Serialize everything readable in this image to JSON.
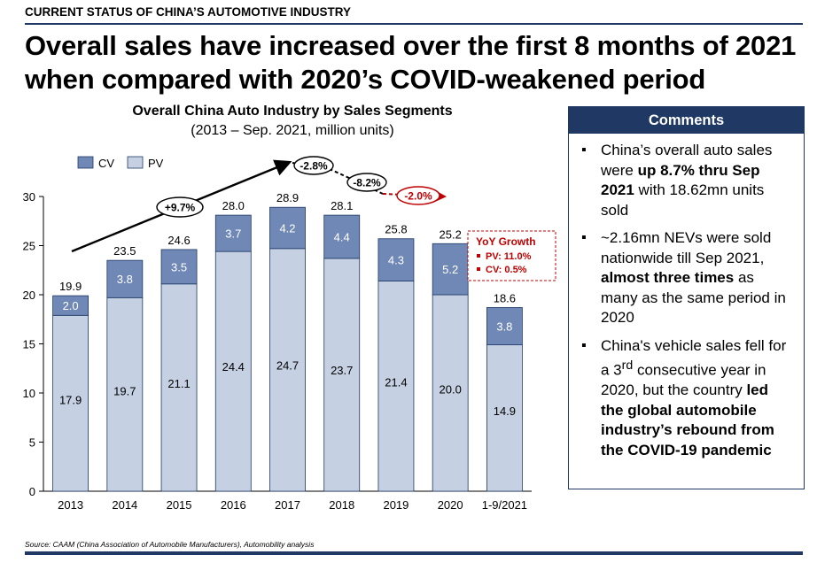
{
  "header": {
    "kicker": "CURRENT STATUS OF CHINA’S AUTOMOTIVE INDUSTRY",
    "headline_line1": "Overall sales have increased over the first 8 months of 2021",
    "headline_line2": "when compared with 2020’s COVID-weakened period"
  },
  "chart_data": {
    "type": "bar",
    "stacked": true,
    "title": "Overall China Auto Industry by Sales Segments",
    "subtitle": "(2013 – Sep. 2021, million units)",
    "categories": [
      "2013",
      "2014",
      "2015",
      "2016",
      "2017",
      "2018",
      "2019",
      "2020",
      "1-9/2021"
    ],
    "series": [
      {
        "name": "PV",
        "color": "#c5d1e3",
        "values": [
          17.9,
          19.7,
          21.1,
          24.4,
          24.7,
          23.7,
          21.4,
          20.0,
          14.9
        ]
      },
      {
        "name": "CV",
        "color": "#6f88b6",
        "values": [
          2.0,
          3.8,
          3.5,
          3.7,
          4.2,
          4.4,
          4.3,
          5.2,
          3.8
        ]
      }
    ],
    "totals": [
      19.9,
      23.5,
      24.6,
      28.0,
      28.9,
      28.1,
      25.8,
      25.2,
      18.6
    ],
    "pv_labels": [
      "17.9",
      "19.7",
      "21.1",
      "24.4",
      "24.7",
      "23.7",
      "21.4",
      "20.0",
      "14.9"
    ],
    "cv_labels": [
      "2.0",
      "3.8",
      "3.5",
      "3.7",
      "4.2",
      "4.4",
      "4.3",
      "5.2",
      "3.8"
    ],
    "total_labels": [
      "19.9",
      "23.5",
      "24.6",
      "28.0",
      "28.9",
      "28.1",
      "25.8",
      "25.2",
      "18.6"
    ],
    "ylim": [
      0,
      30
    ],
    "yticks": [
      0,
      5,
      10,
      15,
      20,
      25,
      30
    ],
    "legend": {
      "position": "top-left",
      "items": [
        "CV",
        "PV"
      ]
    },
    "annotations": {
      "growth_up": "+9.7%",
      "growth_2018": "-2.8%",
      "growth_2019": "-8.2%",
      "growth_2020": "-2.0%",
      "yoy_title": "YoY Growth",
      "yoy_pv": "PV: 11.0%",
      "yoy_cv": "CV: 0.5%"
    },
    "colors": {
      "accent_red": "#c00000",
      "navy": "#1f3864",
      "axis": "#000000"
    }
  },
  "comments": {
    "title": "Comments",
    "b1": {
      "t1": "China’s overall auto sales were ",
      "b1": "up 8.7% thru Sep 2021",
      "t2": " with 18.62mn units sold"
    },
    "b2": {
      "t1": "~2.16mn NEVs were sold nationwide till Sep 2021, ",
      "b1": "almost three times",
      "t2": " as many as the same period in 2020"
    },
    "b3": {
      "t1": "China's vehicle sales fell for a 3",
      "sup": "rd",
      "t2": " consecutive year in 2020, but the country ",
      "b1": "led the global automobile industry’s rebound from the COVID-19 pandemic"
    }
  },
  "source": "Source: CAAM (China Association of Automobile Manufacturers), Automobility analysis"
}
